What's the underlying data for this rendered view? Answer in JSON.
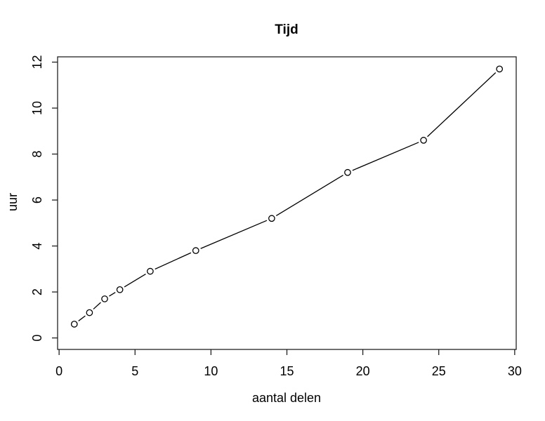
{
  "page": {
    "background": "#ffffff"
  },
  "chart_data": {
    "type": "line",
    "title": "Tijd",
    "xlabel": "aantal delen",
    "ylabel": "uur",
    "x": [
      1,
      2,
      3,
      4,
      6,
      9,
      14,
      19,
      24,
      29
    ],
    "y": [
      0.6,
      1.1,
      1.7,
      2.1,
      2.9,
      3.8,
      5.2,
      7.2,
      8.6,
      11.7
    ],
    "x_ticks": [
      0,
      5,
      10,
      15,
      20,
      25,
      30
    ],
    "y_ticks": [
      0,
      2,
      4,
      6,
      8,
      10,
      12
    ],
    "xlim": [
      -0.1,
      30.1
    ],
    "ylim": [
      -0.5,
      12.23
    ],
    "marker": "open-circle",
    "line_type": "points-and-segments-with-gaps",
    "grid": false,
    "frame_box": true,
    "legend_position": "none",
    "colors": {
      "line": "#000000",
      "marker_stroke": "#000000",
      "marker_fill": "#ffffff",
      "text": "#000000",
      "frame": "#222222"
    }
  }
}
